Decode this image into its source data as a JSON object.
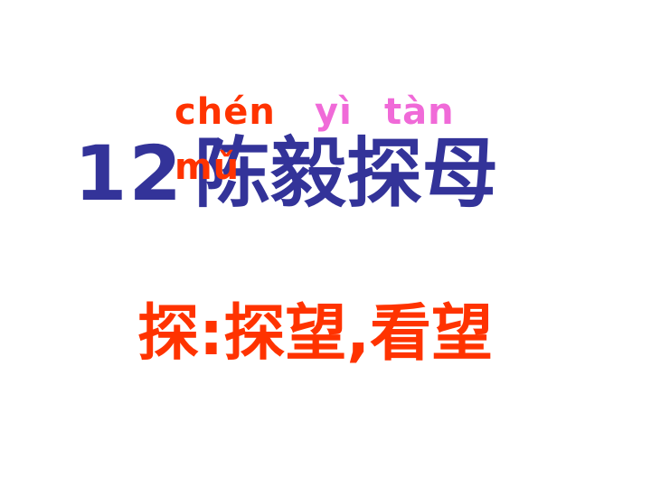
{
  "slide": {
    "pinyin": {
      "chen": "chén",
      "yi": "yì",
      "tan": "tàn",
      "mu": "mǔ"
    },
    "title": {
      "number": "12",
      "text": "陈毅探母"
    },
    "definition": "探:探望,看望"
  },
  "colors": {
    "background": "#ffffff",
    "title": "#333399",
    "pinyin_red": "#ff3300",
    "pinyin_pink": "#f06ad8",
    "definition": "#ff3300"
  }
}
